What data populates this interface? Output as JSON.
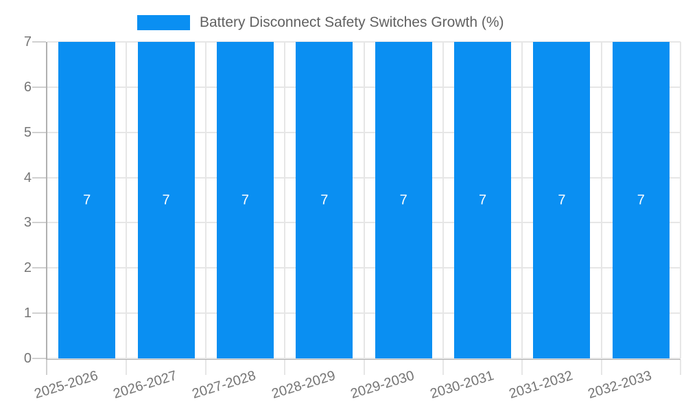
{
  "legend": {
    "label": "Battery Disconnect Safety Switches Growth (%)"
  },
  "chart_data": {
    "type": "bar",
    "title": "Battery Disconnect Safety Switches Growth (%)",
    "categories": [
      "2025-2026",
      "2026-2027",
      "2027-2028",
      "2028-2029",
      "2029-2030",
      "2030-2031",
      "2031-2032",
      "2032-2033"
    ],
    "values": [
      7,
      7,
      7,
      7,
      7,
      7,
      7,
      7
    ],
    "bar_labels": [
      "7",
      "7",
      "7",
      "7",
      "7",
      "7",
      "7",
      "7"
    ],
    "xlabel": "",
    "ylabel": "",
    "ylim": [
      0,
      7
    ],
    "yticks": [
      0,
      1,
      2,
      3,
      4,
      5,
      6,
      7
    ],
    "grid": true,
    "legend_position": "top-center",
    "x_label_rotation_deg": -17,
    "colors": {
      "bar": "#0a8ff2",
      "bar_label": "#ffffff",
      "gridline": "#e6e6e6",
      "tick_mark": "#d0d0d0",
      "axis_line": "#b0b0b0",
      "tick_label": "#757575",
      "legend_text": "#616161",
      "background": "#ffffff"
    }
  }
}
